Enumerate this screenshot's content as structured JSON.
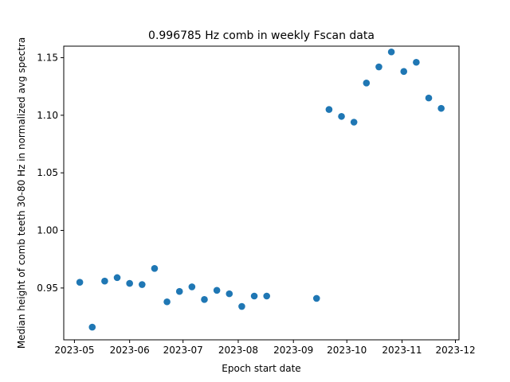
{
  "chart_data": {
    "type": "scatter",
    "title": "0.996785 Hz comb in weekly Fscan data",
    "xlabel": "Epoch start date",
    "ylabel": "Median height of comb teeth 30-80 Hz in normalized avg spectra",
    "xlim": [
      "2023-04-25",
      "2023-12-03"
    ],
    "ylim": [
      0.905,
      1.16
    ],
    "xticks": [
      {
        "value": "2023-05-01",
        "label": "2023-05"
      },
      {
        "value": "2023-06-01",
        "label": "2023-06"
      },
      {
        "value": "2023-07-01",
        "label": "2023-07"
      },
      {
        "value": "2023-08-01",
        "label": "2023-08"
      },
      {
        "value": "2023-09-01",
        "label": "2023-09"
      },
      {
        "value": "2023-10-01",
        "label": "2023-10"
      },
      {
        "value": "2023-11-01",
        "label": "2023-11"
      },
      {
        "value": "2023-12-01",
        "label": "2023-12"
      }
    ],
    "yticks": [
      {
        "value": 0.95,
        "label": "0.95"
      },
      {
        "value": 1.0,
        "label": "1.00"
      },
      {
        "value": 1.05,
        "label": "1.05"
      },
      {
        "value": 1.1,
        "label": "1.10"
      },
      {
        "value": 1.15,
        "label": "1.15"
      }
    ],
    "grid": false,
    "color": "#1f77b4",
    "points": [
      {
        "x": "2023-05-04",
        "y": 0.955
      },
      {
        "x": "2023-05-11",
        "y": 0.916
      },
      {
        "x": "2023-05-18",
        "y": 0.956
      },
      {
        "x": "2023-05-25",
        "y": 0.959
      },
      {
        "x": "2023-06-01",
        "y": 0.954
      },
      {
        "x": "2023-06-08",
        "y": 0.953
      },
      {
        "x": "2023-06-15",
        "y": 0.967
      },
      {
        "x": "2023-06-22",
        "y": 0.938
      },
      {
        "x": "2023-06-29",
        "y": 0.947
      },
      {
        "x": "2023-07-06",
        "y": 0.951
      },
      {
        "x": "2023-07-13",
        "y": 0.94
      },
      {
        "x": "2023-07-20",
        "y": 0.948
      },
      {
        "x": "2023-07-27",
        "y": 0.945
      },
      {
        "x": "2023-08-03",
        "y": 0.934
      },
      {
        "x": "2023-08-10",
        "y": 0.943
      },
      {
        "x": "2023-08-17",
        "y": 0.943
      },
      {
        "x": "2023-09-14",
        "y": 0.941
      },
      {
        "x": "2023-09-21",
        "y": 1.105
      },
      {
        "x": "2023-09-28",
        "y": 1.099
      },
      {
        "x": "2023-10-05",
        "y": 1.094
      },
      {
        "x": "2023-10-12",
        "y": 1.128
      },
      {
        "x": "2023-10-19",
        "y": 1.142
      },
      {
        "x": "2023-10-26",
        "y": 1.155
      },
      {
        "x": "2023-11-02",
        "y": 1.138
      },
      {
        "x": "2023-11-09",
        "y": 1.146
      },
      {
        "x": "2023-11-16",
        "y": 1.115
      },
      {
        "x": "2023-11-23",
        "y": 1.106
      }
    ]
  }
}
